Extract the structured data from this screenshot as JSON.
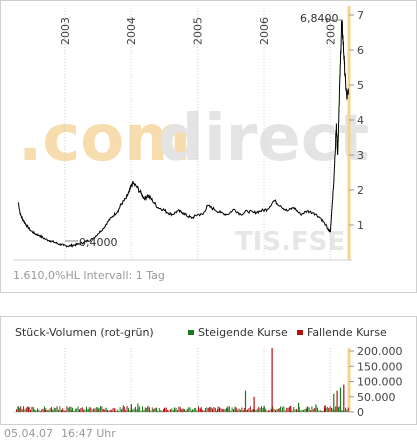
{
  "price_panel": {
    "watermark_com": ".com",
    "watermark_direct": "direct",
    "exchange_watermark": "TIS.FSE",
    "high_annotation": "6,8400",
    "low_annotation": "0,4000",
    "footer_text": "1.610,0%HL Intervall: 1 Tag"
  },
  "volume_panel": {
    "title": "Stück-Volumen (rot-grün)",
    "legend_rising": "Steigende Kurse",
    "legend_falling": "Fallende Kurse"
  },
  "footer": {
    "date": "05.04.07",
    "time": "16:47 Uhr"
  },
  "colors": {
    "price_line": "#000000",
    "rising": "#1a7a1a",
    "falling": "#b01010",
    "axis_highlight": "#f5d58c",
    "watermark_orange": "#f7dcae",
    "watermark_grey": "#e4e4e4"
  },
  "chart_data": [
    {
      "type": "line",
      "title": "",
      "x_tick_labels": [
        "2003",
        "2004",
        "2005",
        "2006",
        "2007"
      ],
      "y_tick_labels": [
        "1",
        "2",
        "3",
        "4",
        "5",
        "6",
        "7"
      ],
      "ylim": [
        0,
        7.2
      ],
      "xlim": [
        2002.25,
        2007.28
      ],
      "grid": "vertical-dotted",
      "y_axis": "right",
      "series": [
        {
          "x": [
            2002.3,
            2002.33,
            2002.37,
            2002.42,
            2002.48,
            2002.55,
            2002.62,
            2002.7,
            2002.78,
            2002.85,
            2002.92,
            2002.98,
            2003.05,
            2003.12,
            2003.2,
            2003.28,
            2003.35,
            2003.42,
            2003.5,
            2003.58,
            2003.65,
            2003.72,
            2003.8,
            2003.85,
            2003.92,
            2003.97,
            2004.02,
            2004.08,
            2004.15,
            2004.2,
            2004.25,
            2004.32,
            2004.4,
            2004.48,
            2004.55,
            2004.62,
            2004.7,
            2004.78,
            2004.85,
            2004.92,
            2005.0,
            2005.08,
            2005.15,
            2005.25,
            2005.35,
            2005.45,
            2005.55,
            2005.65,
            2005.75,
            2005.85,
            2005.95,
            2006.05,
            2006.15,
            2006.25,
            2006.35,
            2006.45,
            2006.55,
            2006.65,
            2006.75,
            2006.85,
            2006.93,
            2006.97,
            2007.0,
            2007.02,
            2007.05,
            2007.07,
            2007.09,
            2007.11,
            2007.13,
            2007.15,
            2007.17,
            2007.19,
            2007.21,
            2007.23,
            2007.25,
            2007.27
          ],
          "y": [
            1.65,
            1.3,
            1.15,
            1.0,
            0.85,
            0.75,
            0.7,
            0.6,
            0.55,
            0.5,
            0.45,
            0.42,
            0.4,
            0.42,
            0.45,
            0.5,
            0.55,
            0.6,
            0.75,
            0.9,
            1.1,
            1.25,
            1.4,
            1.6,
            1.75,
            1.95,
            2.2,
            2.1,
            1.9,
            1.75,
            1.85,
            1.7,
            1.5,
            1.45,
            1.35,
            1.3,
            1.4,
            1.35,
            1.25,
            1.2,
            1.3,
            1.3,
            1.55,
            1.45,
            1.35,
            1.3,
            1.45,
            1.3,
            1.4,
            1.35,
            1.4,
            1.45,
            1.7,
            1.55,
            1.4,
            1.5,
            1.3,
            1.4,
            1.35,
            1.2,
            1.0,
            0.85,
            0.8,
            1.4,
            2.2,
            3.0,
            3.9,
            3.0,
            4.4,
            5.6,
            6.84,
            6.3,
            5.6,
            5.0,
            4.6,
            4.9
          ]
        }
      ]
    },
    {
      "type": "bar",
      "title": "",
      "y_tick_labels": [
        "0",
        "50.000",
        "100.000",
        "150.000",
        "200.000"
      ],
      "ylim": [
        0,
        210000
      ],
      "y_axis": "right",
      "series": [
        {
          "name": "Steigende Kurse",
          "x": [
            2002.3,
            2002.55,
            2002.82,
            2003.1,
            2003.35,
            2003.62,
            2003.88,
            2004.1,
            2004.38,
            2004.65,
            2004.92,
            2005.18,
            2005.45,
            2005.72,
            2006.0,
            2006.25,
            2006.52,
            2006.78,
            2007.05,
            2007.15
          ],
          "values": [
            18000,
            5000,
            8000,
            6000,
            10000,
            14000,
            22000,
            28000,
            12000,
            15000,
            9000,
            16000,
            12000,
            70000,
            20000,
            18000,
            30000,
            25000,
            60000,
            80000
          ]
        },
        {
          "name": "Fallende Kurse",
          "x": [
            2002.45,
            2002.7,
            2002.95,
            2003.22,
            2003.5,
            2003.75,
            2004.0,
            2004.25,
            2004.5,
            2004.78,
            2005.05,
            2005.3,
            2005.58,
            2005.85,
            2006.12,
            2006.4,
            2006.65,
            2006.92,
            2007.1,
            2007.2
          ],
          "values": [
            15000,
            6000,
            7000,
            9000,
            8000,
            12000,
            26000,
            20000,
            14000,
            10000,
            12000,
            10000,
            15000,
            50000,
            210000,
            20000,
            18000,
            22000,
            70000,
            90000
          ]
        }
      ]
    }
  ]
}
